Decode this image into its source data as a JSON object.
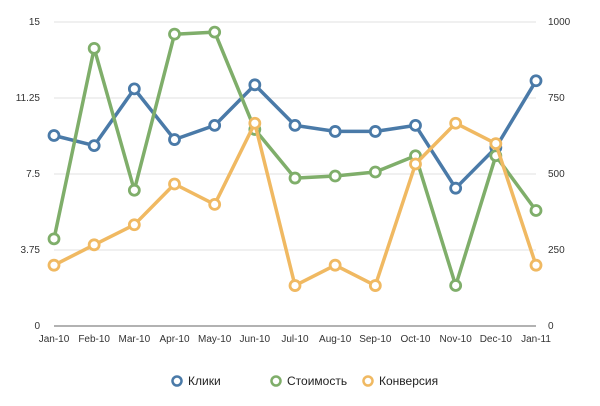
{
  "chart_data": {
    "type": "line",
    "categories": [
      "Jan-10",
      "Feb-10",
      "Mar-10",
      "Apr-10",
      "May-10",
      "Jun-10",
      "Jul-10",
      "Aug-10",
      "Sep-10",
      "Oct-10",
      "Nov-10",
      "Dec-10",
      "Jan-11"
    ],
    "y_left": {
      "ticks": [
        0,
        3.75,
        7.5,
        11.25,
        15
      ],
      "tick_labels": [
        "0",
        "3.75",
        "7.5",
        "11.25",
        "15"
      ],
      "range": [
        0,
        15
      ]
    },
    "y_right": {
      "ticks": [
        0,
        250,
        500,
        750,
        1000
      ],
      "tick_labels": [
        "0",
        "250",
        "500",
        "750",
        "1000"
      ],
      "range": [
        0,
        1000
      ]
    },
    "grid": "horizontal",
    "legend_position": "bottom",
    "series": [
      {
        "name": "Клики",
        "axis": "left",
        "color": "#4a7aa8",
        "values": [
          9.4,
          8.9,
          11.7,
          9.2,
          9.9,
          11.9,
          9.9,
          9.6,
          9.6,
          9.9,
          6.8,
          8.8,
          12.1
        ]
      },
      {
        "name": "Стоимость",
        "axis": "left",
        "color": "#7fae6a",
        "values": [
          4.3,
          13.7,
          6.7,
          14.4,
          14.5,
          9.7,
          7.3,
          7.4,
          7.6,
          8.4,
          2.0,
          8.4,
          5.7
        ]
      },
      {
        "name": "Конверсия",
        "axis": "right",
        "color": "#f0b962",
        "values": [
          200,
          267,
          333,
          467,
          400,
          667,
          133,
          200,
          133,
          533,
          667,
          600,
          200
        ]
      }
    ]
  }
}
